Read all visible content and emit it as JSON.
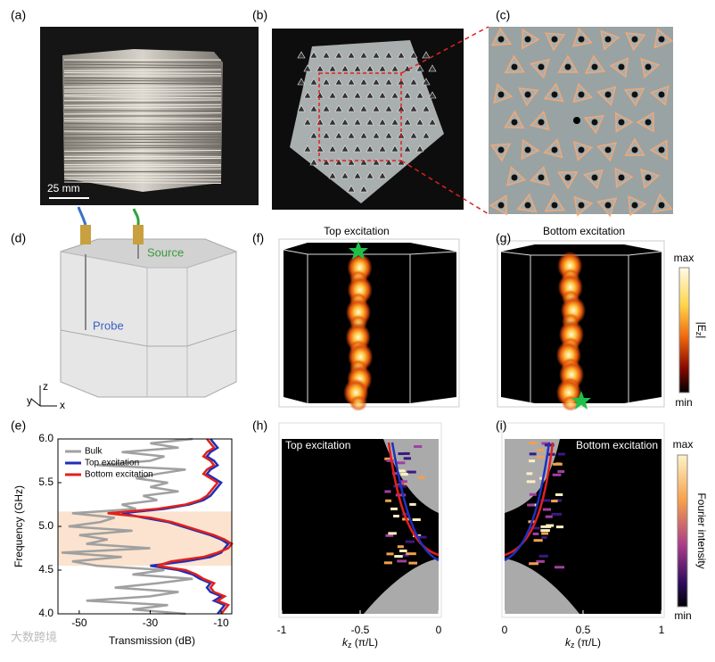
{
  "panel_labels": [
    "(a)",
    "(b)",
    "(c)",
    "(d)",
    "(e)",
    "(f)",
    "(g)",
    "(h)",
    "(i)"
  ],
  "a": {
    "scale_bar": "25 mm"
  },
  "d": {
    "source": "Source",
    "probe": "Probe",
    "axes": [
      "y",
      "z",
      "x"
    ]
  },
  "f": {
    "title": "Top excitation"
  },
  "g": {
    "title": "Bottom excitation"
  },
  "field_colorbar": {
    "max": "max",
    "min": "min",
    "label": [
      "|E",
      "z",
      "|"
    ]
  },
  "fourier_colorbar": {
    "max": "max",
    "min": "min",
    "label": "Fourier intensity"
  },
  "watermark": "大数跨境",
  "chart_data": [
    {
      "type": "line",
      "ylabel": "Frequency (GHz)",
      "xlabel": "Transmission (dB)",
      "xlim": [
        -56,
        -7
      ],
      "xticks": [
        -50,
        -30,
        -10
      ],
      "ylim": [
        4,
        6
      ],
      "yticks": [
        {
          "value": 4,
          "label": "4.0"
        },
        {
          "value": 4.5,
          "label": "4.5"
        },
        {
          "value": 5,
          "label": "5.0"
        },
        {
          "value": 5.5,
          "label": "5.5"
        },
        {
          "value": 6,
          "label": "6.0"
        }
      ],
      "shaded_band": [
        4.55,
        5.17
      ],
      "band_color": "#fbe3cf",
      "legend": "upper left",
      "y": [
        4.0,
        4.05,
        4.1,
        4.15,
        4.2,
        4.25,
        4.3,
        4.35,
        4.4,
        4.45,
        4.5,
        4.55,
        4.6,
        4.65,
        4.7,
        4.75,
        4.8,
        4.85,
        4.9,
        4.95,
        5.0,
        5.05,
        5.1,
        5.15,
        5.2,
        5.25,
        5.3,
        5.35,
        5.4,
        5.45,
        5.5,
        5.55,
        5.6,
        5.65,
        5.7,
        5.75,
        5.8,
        5.85,
        5.9,
        5.95,
        6.0
      ],
      "series": [
        {
          "name": "Bulk",
          "color": "#a0a0a0",
          "values": [
            -20,
            -35,
            -25,
            -48,
            -30,
            -22,
            -40,
            -28,
            -18,
            -35,
            -26,
            -45,
            -52,
            -38,
            -55,
            -30,
            -48,
            -42,
            -50,
            -35,
            -53,
            -44,
            -40,
            -52,
            -34,
            -38,
            -28,
            -32,
            -22,
            -30,
            -25,
            -34,
            -28,
            -20,
            -45,
            -30,
            -26,
            -38,
            -22,
            -30,
            -18
          ]
        },
        {
          "name": "Top excitation",
          "color": "#1f2fb8",
          "values": [
            -11,
            -10,
            -9,
            -12,
            -10,
            -13,
            -14,
            -13,
            -16,
            -18,
            -22,
            -30,
            -20,
            -13,
            -10,
            -9,
            -8,
            -10,
            -13,
            -17,
            -21,
            -25,
            -32,
            -38,
            -26,
            -19,
            -15,
            -13,
            -12,
            -11,
            -10,
            -12,
            -14,
            -13,
            -11,
            -12,
            -14,
            -13,
            -11,
            -12,
            -13
          ]
        },
        {
          "name": "Bottom excitation",
          "color": "#e0201b",
          "values": [
            -10,
            -9,
            -8,
            -11,
            -9,
            -12,
            -13,
            -12,
            -15,
            -17,
            -20,
            -28,
            -24,
            -15,
            -11,
            -8,
            -7,
            -9,
            -12,
            -16,
            -20,
            -24,
            -30,
            -42,
            -28,
            -20,
            -16,
            -14,
            -13,
            -12,
            -11,
            -13,
            -15,
            -14,
            -12,
            -13,
            -15,
            -14,
            -12,
            -13,
            -14
          ]
        }
      ]
    },
    {
      "type": "heatmap",
      "title": "Top excitation",
      "xlabel": [
        "k",
        "z",
        " (π/L)"
      ],
      "xlim": [
        -1,
        0
      ],
      "xticks": [
        -1,
        -0.5,
        0
      ]
    },
    {
      "type": "heatmap",
      "title": "Bottom excitation",
      "xlabel": [
        "k",
        "z",
        " (π/L)"
      ],
      "xlim": [
        0,
        1
      ],
      "xticks": [
        0,
        0.5,
        1
      ]
    }
  ]
}
